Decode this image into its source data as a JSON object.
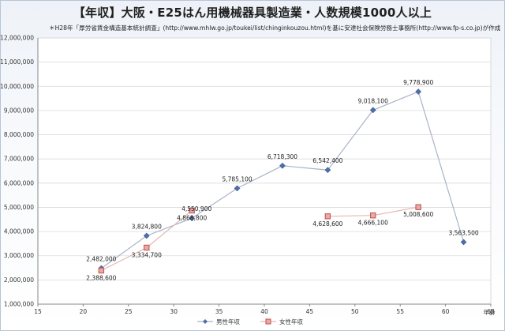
{
  "chart": {
    "title": "【年収】大阪・E25はん用機械器具製造業・人数規模1000人以上",
    "source": "＊H28年「厚労省賃金構造基本統計調査」(http://www.mhlw.go.jp/toukei/list/chinginkouzou.html)を基に安達社会保険労務士事務所(http://www.fp-s.co.jp)が作成",
    "xlabel": "年齢"
  },
  "chart_data": {
    "type": "line",
    "title": "【年収】大阪・E25はん用機械器具製造業・人数規模1000人以上",
    "xlabel": "年齢",
    "ylabel": "",
    "xlim": [
      15,
      65
    ],
    "ylim": [
      1000000,
      12000000
    ],
    "x_ticks": [
      15,
      20,
      25,
      30,
      35,
      40,
      45,
      50,
      55,
      60,
      65
    ],
    "y_ticks": [
      1000000,
      2000000,
      3000000,
      4000000,
      5000000,
      6000000,
      7000000,
      8000000,
      9000000,
      10000000,
      11000000,
      12000000
    ],
    "y_tick_labels": [
      "1,000,000",
      "2,000,000",
      "3,000,000",
      "4,000,000",
      "5,000,000",
      "6,000,000",
      "7,000,000",
      "8,000,000",
      "9,000,000",
      "10,000,000",
      "11,000,000",
      "12,000,000"
    ],
    "grid": "horizontal",
    "legend": "bottom",
    "series": [
      {
        "name": "男性年収",
        "color": "#4f6fa8",
        "marker": "diamond",
        "points": [
          {
            "x": 22,
            "y": 2482000,
            "label": "2,482,000"
          },
          {
            "x": 27,
            "y": 3824800,
            "label": "3,824,800"
          },
          {
            "x": 32,
            "y": 4550900,
            "label": "4,550,900"
          },
          {
            "x": 37,
            "y": 5785100,
            "label": "5,785,100"
          },
          {
            "x": 42,
            "y": 6718300,
            "label": "6,718,300"
          },
          {
            "x": 47,
            "y": 6542400,
            "label": "6,542,400"
          },
          {
            "x": 52,
            "y": 9018100,
            "label": "9,018,100"
          },
          {
            "x": 57,
            "y": 9778900,
            "label": "9,778,900"
          },
          {
            "x": 62,
            "y": 3563500,
            "label": "3,563,500"
          }
        ]
      },
      {
        "name": "女性年収",
        "color": "#c0504d",
        "marker": "square",
        "segments": [
          [
            0,
            1,
            2
          ],
          [
            3,
            4,
            5
          ]
        ],
        "points": [
          {
            "x": 22,
            "y": 2388600,
            "label": "2,388,600"
          },
          {
            "x": 27,
            "y": 3334700,
            "label": "3,334,700"
          },
          {
            "x": 32,
            "y": 4868800,
            "label": "4,868,800"
          },
          {
            "x": 47,
            "y": 4628600,
            "label": "4,628,600"
          },
          {
            "x": 52,
            "y": 4666100,
            "label": "4,666,100"
          },
          {
            "x": 57,
            "y": 5008600,
            "label": "5,008,600"
          }
        ]
      }
    ]
  }
}
